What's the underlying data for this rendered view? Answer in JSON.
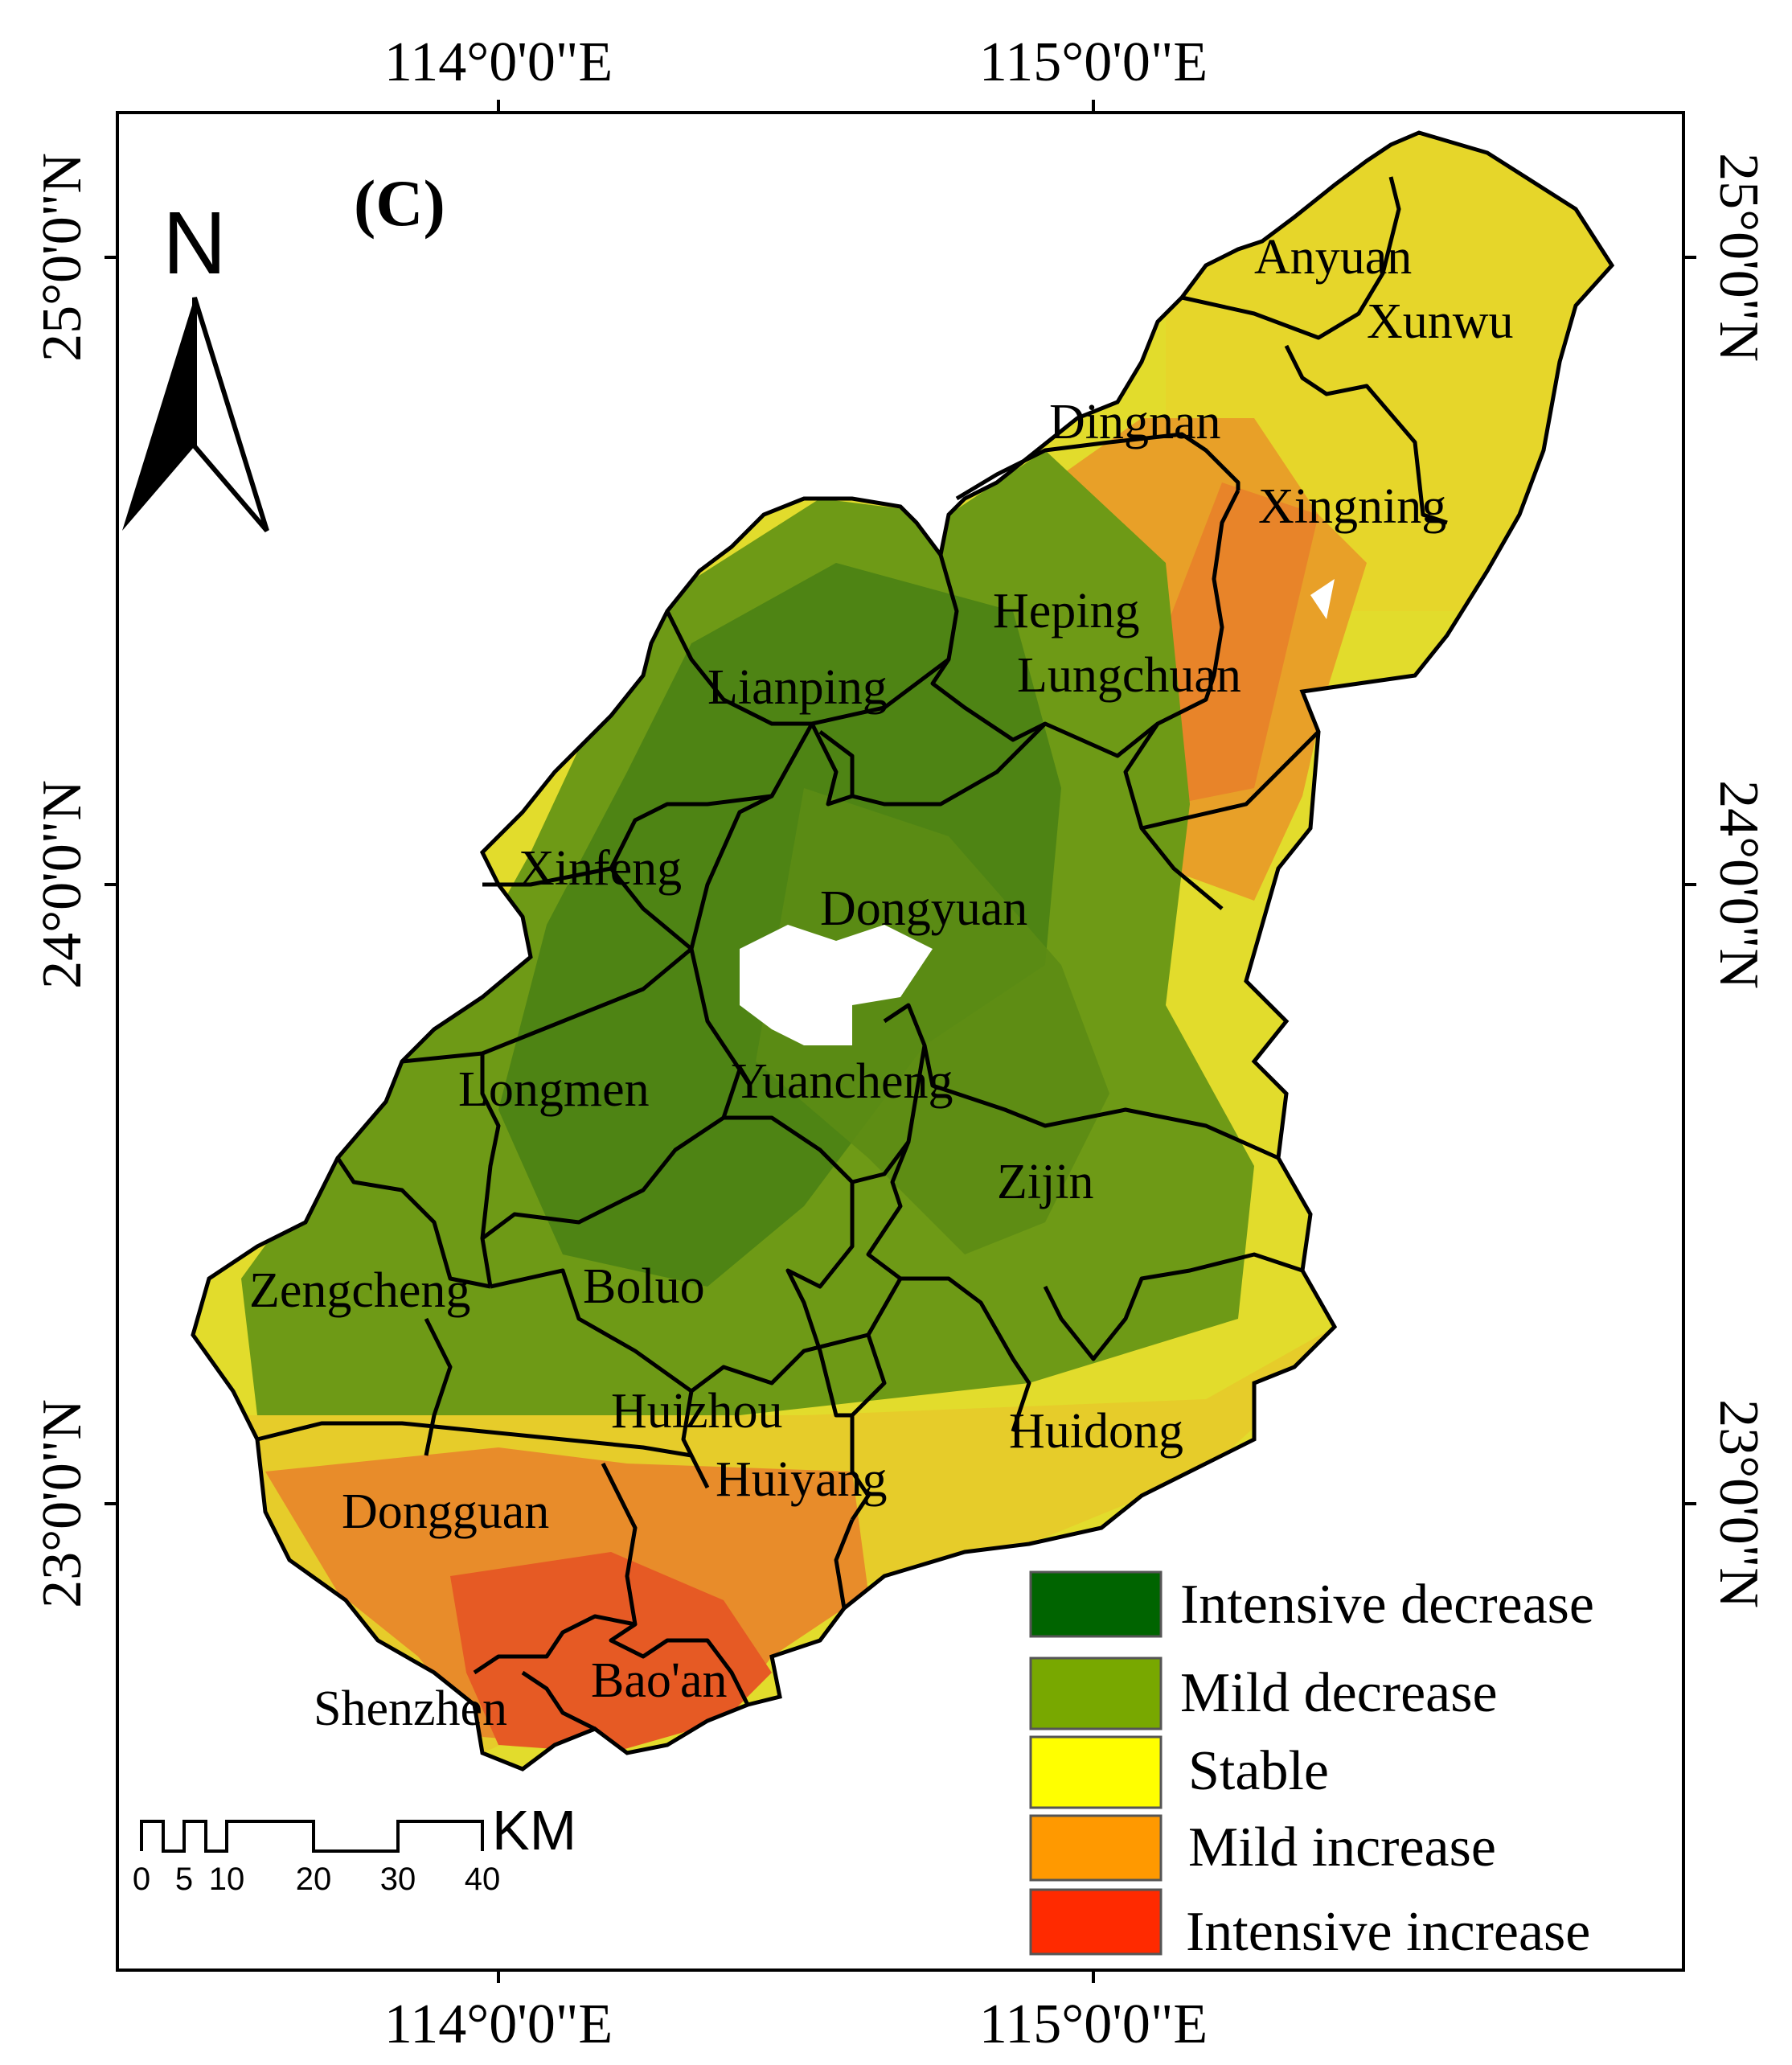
{
  "panel_label": "(C)",
  "north_arrow": {
    "letter": "N",
    "icon": "north-arrow-icon"
  },
  "axes": {
    "top": [
      "114°0'0\"E",
      "115°0'0\"E"
    ],
    "bottom": [
      "114°0'0\"E",
      "115°0'0\"E"
    ],
    "left": [
      "25°0'0\"N",
      "24°0'0\"N",
      "23°0'0\"N"
    ],
    "right": [
      "25°0'0\"N",
      "24°0'0\"N",
      "23°0'0\"N"
    ]
  },
  "counties": [
    {
      "id": "anyuan",
      "name": "Anyuan"
    },
    {
      "id": "xunwu",
      "name": "Xunwu"
    },
    {
      "id": "dingnan",
      "name": "Dingnan"
    },
    {
      "id": "xingning",
      "name": "Xingning"
    },
    {
      "id": "heping",
      "name": "Heping"
    },
    {
      "id": "lungchuan",
      "name": "Lungchuan"
    },
    {
      "id": "lianping",
      "name": "Lianping"
    },
    {
      "id": "xinfeng",
      "name": "Xinfeng"
    },
    {
      "id": "dongyuan",
      "name": "Dongyuan"
    },
    {
      "id": "yuancheng",
      "name": "Yuancheng"
    },
    {
      "id": "longmen",
      "name": "Longmen"
    },
    {
      "id": "zijin",
      "name": "Zijin"
    },
    {
      "id": "zengcheng",
      "name": "Zengcheng"
    },
    {
      "id": "boluo",
      "name": "Boluo"
    },
    {
      "id": "huizhou",
      "name": "Huizhou"
    },
    {
      "id": "huiyang",
      "name": "Huiyang"
    },
    {
      "id": "huidong",
      "name": "Huidong"
    },
    {
      "id": "dongguan",
      "name": "Dongguan"
    },
    {
      "id": "baoan",
      "name": "Bao'an"
    },
    {
      "id": "shenzhen",
      "name": "Shenzhen"
    }
  ],
  "legend": [
    {
      "label": "Intensive decrease",
      "color": "#006400"
    },
    {
      "label": "Mild decrease",
      "color": "#78a800"
    },
    {
      "label": "Stable",
      "color": "#ffff00"
    },
    {
      "label": "Mild increase",
      "color": "#ff9900"
    },
    {
      "label": "Intensive increase",
      "color": "#ff2a00"
    }
  ],
  "scale_bar": {
    "unit": "KM",
    "ticks": [
      "0",
      "5",
      "10",
      "20",
      "30",
      "40"
    ]
  },
  "colors": {
    "frame": "#000000",
    "boundary": "#000000",
    "water": "#ffffff"
  }
}
